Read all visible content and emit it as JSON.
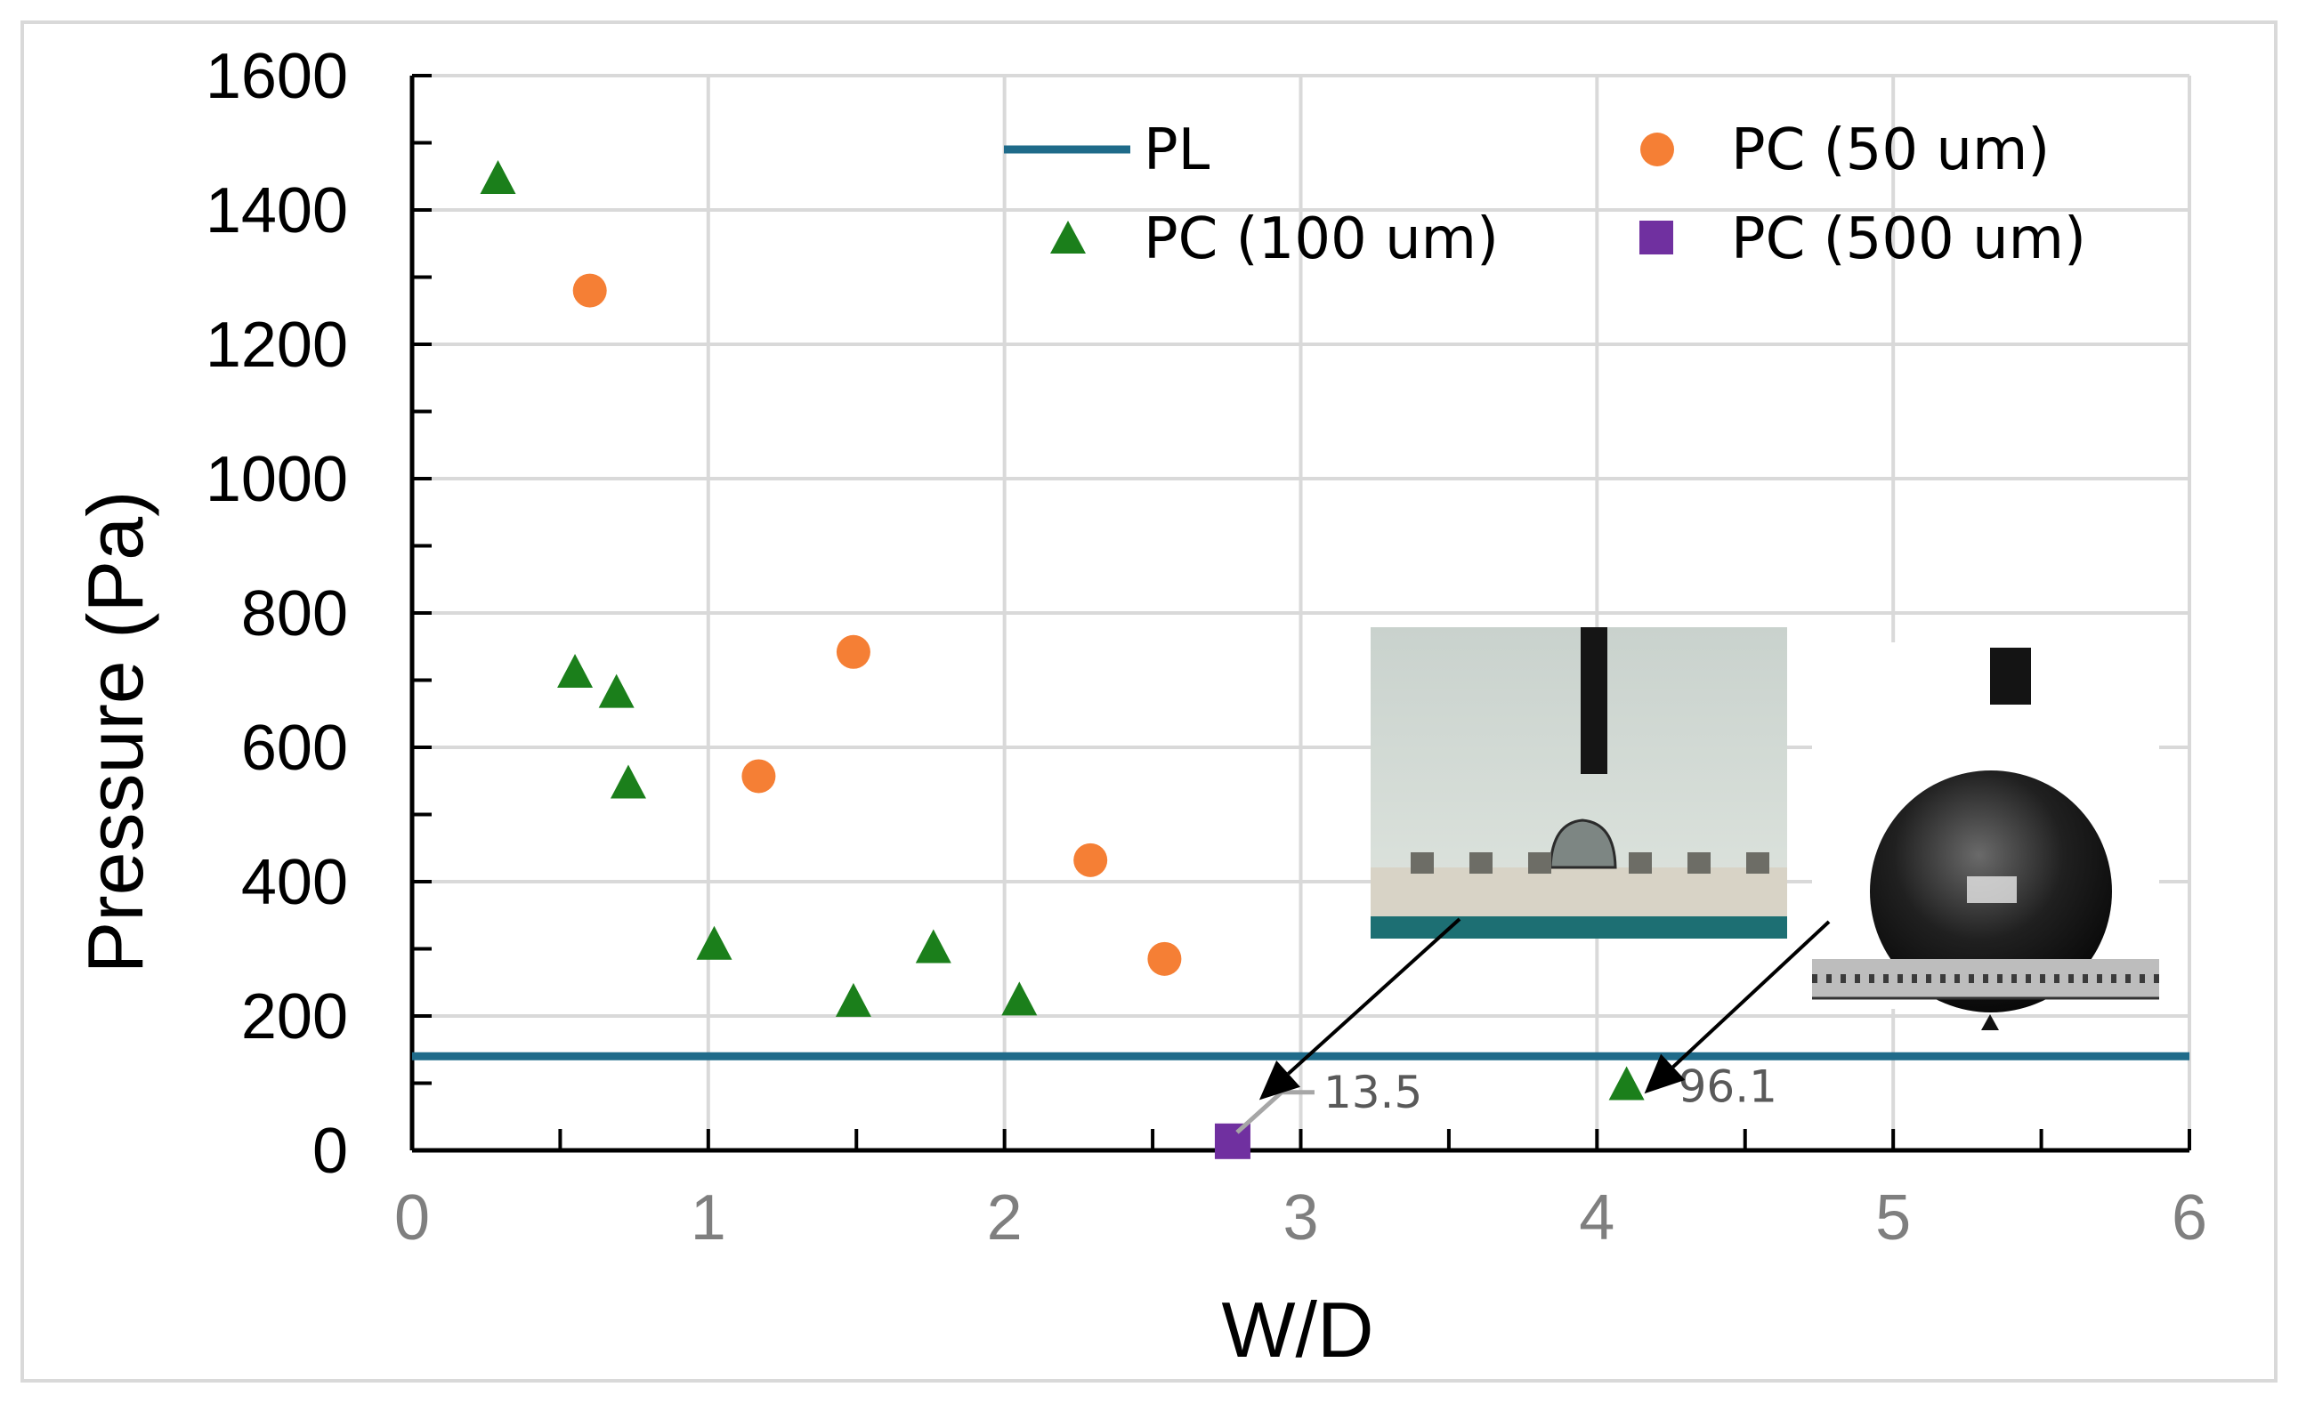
{
  "chart_data": {
    "type": "scatter",
    "xlabel": "W/D",
    "ylabel": "Pressure (Pa)",
    "xlim": [
      0,
      6
    ],
    "ylim": [
      0,
      1600
    ],
    "x_ticks": [
      "0",
      "1",
      "2",
      "3",
      "4",
      "5",
      "6"
    ],
    "y_ticks": [
      "0",
      "200",
      "400",
      "600",
      "800",
      "1000",
      "1200",
      "1400",
      "1600"
    ],
    "grid": true,
    "legend_position": "top-right",
    "series": [
      {
        "name": "PL",
        "label": "PL",
        "kind": "line",
        "color": "#1f6b8a",
        "points": [
          [
            0,
            140
          ],
          [
            6,
            140
          ]
        ]
      },
      {
        "name": "PC (50 um)",
        "label": "PC (50 um)",
        "kind": "circle",
        "color": "#f57f35",
        "points": [
          [
            0.6,
            1280
          ],
          [
            1.17,
            557
          ],
          [
            1.49,
            742
          ],
          [
            2.29,
            432
          ],
          [
            2.54,
            285
          ]
        ]
      },
      {
        "name": "PC (100 um)",
        "label": "PC (100 um)",
        "kind": "triangle",
        "color": "#1b7f1b",
        "points": [
          [
            0.29,
            1445
          ],
          [
            0.55,
            710
          ],
          [
            0.69,
            680
          ],
          [
            0.73,
            545
          ],
          [
            1.02,
            305
          ],
          [
            1.49,
            220
          ],
          [
            1.76,
            300
          ],
          [
            2.05,
            222
          ],
          [
            4.1,
            96.1
          ]
        ]
      },
      {
        "name": "PC (500 um)",
        "label": "PC (500 um)",
        "kind": "square",
        "color": "#7030a0",
        "points": [
          [
            2.77,
            13.5
          ]
        ]
      }
    ],
    "annotations": [
      {
        "text": "13.5",
        "x": 2.77,
        "y": 13.5
      },
      {
        "text": "96.1",
        "x": 4.1,
        "y": 96.1
      }
    ],
    "insets": [
      {
        "name": "droplet-sessile-photo",
        "points_to": [
          2.86,
          75
        ]
      },
      {
        "name": "droplet-sphere-photo",
        "points_to": [
          4.16,
          140
        ]
      }
    ]
  }
}
